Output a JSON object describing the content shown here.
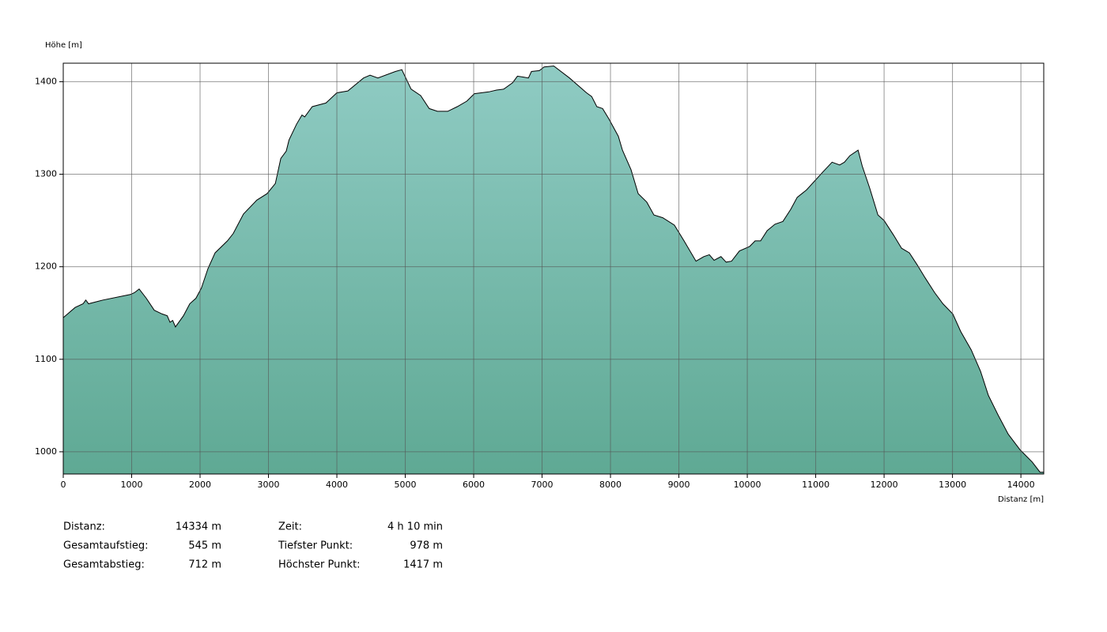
{
  "chart_data": {
    "type": "area",
    "y_label": "Höhe [m]",
    "x_label": "Distanz [m]",
    "x": [
      0,
      173,
      290,
      330,
      370,
      580,
      980,
      1040,
      1110,
      1214,
      1330,
      1445,
      1520,
      1560,
      1600,
      1640,
      1757,
      1850,
      1940,
      2020,
      2115,
      2220,
      2400,
      2485,
      2635,
      2830,
      2980,
      3100,
      3180,
      3260,
      3300,
      3410,
      3490,
      3530,
      3640,
      3840,
      4000,
      4160,
      4390,
      4485,
      4600,
      4855,
      4950,
      5085,
      5225,
      5350,
      5470,
      5620,
      5760,
      5900,
      6010,
      6220,
      6335,
      6440,
      6570,
      6640,
      6730,
      6800,
      6845,
      6960,
      7030,
      7170,
      7400,
      7650,
      7725,
      7800,
      7885,
      7975,
      8115,
      8175,
      8300,
      8405,
      8530,
      8635,
      8765,
      8935,
      9075,
      9250,
      9365,
      9445,
      9515,
      9615,
      9690,
      9770,
      9885,
      10035,
      10115,
      10195,
      10290,
      10405,
      10520,
      10635,
      10730,
      10865,
      11100,
      11240,
      11350,
      11420,
      11500,
      11620,
      11680,
      11790,
      11910,
      12000,
      12140,
      12255,
      12370,
      12485,
      12600,
      12740,
      12860,
      13005,
      13120,
      13275,
      13410,
      13525,
      13665,
      13815,
      13990,
      14165,
      14280,
      14334
    ],
    "values": [
      1145,
      1156,
      1160,
      1164,
      1160,
      1164,
      1170,
      1172,
      1176,
      1166,
      1153,
      1149,
      1147,
      1140,
      1142,
      1135,
      1147,
      1160,
      1166,
      1177,
      1198,
      1215,
      1228,
      1236,
      1257,
      1272,
      1279,
      1290,
      1317,
      1325,
      1337,
      1354,
      1364,
      1362,
      1373,
      1377,
      1388,
      1390,
      1404,
      1407,
      1404,
      1411,
      1413,
      1392,
      1385,
      1371,
      1368,
      1368,
      1373,
      1379,
      1387,
      1389,
      1391,
      1392,
      1399,
      1406,
      1405,
      1404,
      1411,
      1412,
      1416,
      1417,
      1404,
      1388,
      1384,
      1373,
      1371,
      1360,
      1341,
      1326,
      1305,
      1279,
      1270,
      1256,
      1253,
      1245,
      1228,
      1206,
      1211,
      1213,
      1207,
      1211,
      1205,
      1206,
      1217,
      1222,
      1228,
      1228,
      1239,
      1246,
      1249,
      1262,
      1275,
      1283,
      1302,
      1313,
      1310,
      1313,
      1320,
      1326,
      1309,
      1285,
      1256,
      1250,
      1234,
      1220,
      1215,
      1202,
      1188,
      1172,
      1160,
      1149,
      1130,
      1110,
      1087,
      1061,
      1040,
      1019,
      1002,
      989,
      978,
      978
    ],
    "xlim": [
      0,
      14334
    ],
    "ylim": [
      976,
      1420
    ],
    "xticks": [
      0,
      1000,
      2000,
      3000,
      4000,
      5000,
      6000,
      7000,
      8000,
      9000,
      10000,
      11000,
      12000,
      13000,
      14000
    ],
    "yticks": [
      1000,
      1100,
      1200,
      1300,
      1400
    ],
    "grid": true,
    "colors": [
      "#8fcbc3",
      "#5fa994"
    ],
    "line_color": "#000000",
    "summary": [
      {
        "label": "Distanz:",
        "value": "14334 m"
      },
      {
        "label": "Gesamtaufstieg:",
        "value": "545 m"
      },
      {
        "label": "Gesamtabstieg:",
        "value": "712 m"
      },
      {
        "label": "Zeit:",
        "value": "4 h 10 min"
      },
      {
        "label": "Tiefster Punkt:",
        "value": "978 m"
      },
      {
        "label": "Höchster Punkt:",
        "value": "1417 m"
      }
    ]
  }
}
